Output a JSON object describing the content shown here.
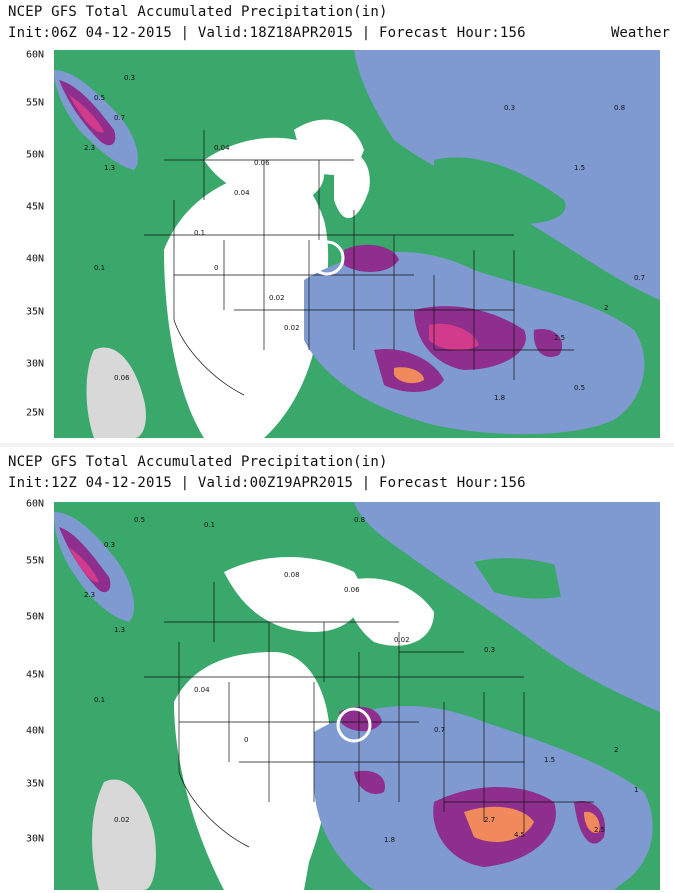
{
  "panels": [
    {
      "title": "NCEP GFS Total Accumulated Precipitation(in)",
      "subtitle": "Init:06Z 04-12-2015 | Valid:18Z18APR2015 | Forecast Hour:156",
      "brand": "Weather",
      "lat_labels": [
        "60N",
        "55N",
        "50N",
        "45N",
        "40N",
        "35N",
        "30N",
        "25N"
      ]
    },
    {
      "title": "NCEP GFS Total Accumulated Precipitation(in)",
      "subtitle": "Init:12Z 04-12-2015 | Valid:00Z19APR2015 | Forecast Hour:156",
      "brand": "",
      "lat_labels": [
        "60N",
        "55N",
        "50N",
        "45N",
        "40N",
        "35N",
        "30N"
      ]
    }
  ],
  "colors": {
    "dry": "#ffffff",
    "light": "#d8d8d8",
    "green": "#3aa86a",
    "blue": "#7f9ad0",
    "purple": "#8e2f8e",
    "magenta": "#d23b8c",
    "orange": "#f08a5c",
    "circle": "#ffffff"
  },
  "values": {
    "top": [
      "0.3",
      "0.5",
      "0.7",
      "2.3",
      "1.3",
      "0.04",
      "0.1",
      "0.06",
      "0.02",
      "0",
      "1.5",
      "0.8",
      "0.3",
      "0.04",
      "0.02",
      "0.06",
      "0.1",
      "2",
      "2.5",
      "1.8",
      "0.7",
      "0.5"
    ],
    "bottom": [
      "0.5",
      "0.3",
      "0.1",
      "2.3",
      "1.3",
      "0.08",
      "0.04",
      "0.06",
      "0.02",
      "0",
      "1.5",
      "2.7",
      "4.5",
      "1.8",
      "0.7",
      "0.3",
      "0.1",
      "0.02",
      "0.8",
      "2.5",
      "2",
      "1"
    ]
  }
}
